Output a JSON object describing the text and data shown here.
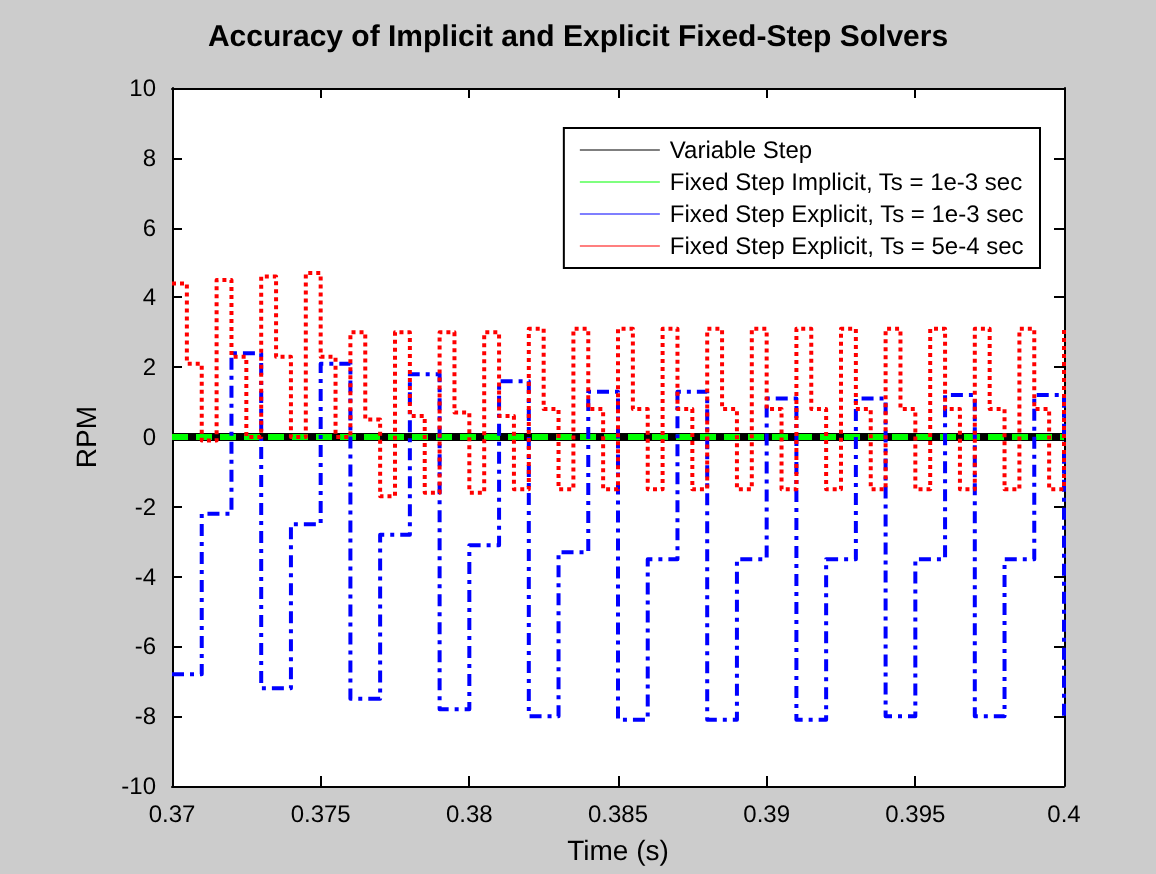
{
  "chart_data": {
    "type": "step",
    "title": "Accuracy of Implicit and Explicit Fixed-Step Solvers",
    "xlabel": "Time (s)",
    "ylabel": "RPM",
    "xlim": [
      0.37,
      0.4
    ],
    "xticks": [
      0.37,
      0.375,
      0.38,
      0.385,
      0.39,
      0.395,
      0.4
    ],
    "ylim": [
      -10,
      10
    ],
    "yticks": [
      -10,
      -8,
      -6,
      -4,
      -2,
      0,
      2,
      4,
      6,
      8,
      10
    ],
    "grid": false,
    "legend": "top right",
    "marker": "none",
    "series": [
      {
        "name": "Variable Step",
        "color": "#000000",
        "line_style": "solid",
        "x": [
          0.37,
          0.4
        ],
        "values": [
          0,
          0
        ]
      },
      {
        "name": "Fixed Step Implicit, Ts = 1e-3 sec",
        "color": "#00ff00",
        "line_style": "dashed",
        "x": [
          0.37,
          0.4
        ],
        "values": [
          0,
          0
        ]
      },
      {
        "name": "Fixed Step Explicit, Ts = 1e-3 sec",
        "color": "#0000ff",
        "line_style": "dashdot",
        "x": [
          0.37,
          0.371,
          0.372,
          0.373,
          0.374,
          0.375,
          0.376,
          0.377,
          0.378,
          0.379,
          0.38,
          0.381,
          0.382,
          0.383,
          0.384,
          0.385,
          0.386,
          0.387,
          0.388,
          0.389,
          0.39,
          0.391,
          0.392,
          0.393,
          0.394,
          0.395,
          0.396,
          0.397,
          0.398,
          0.399,
          0.4
        ],
        "values": [
          -6.8,
          -2.2,
          2.4,
          -7.2,
          -2.5,
          2.1,
          -7.5,
          -2.8,
          1.8,
          -7.8,
          -3.1,
          1.6,
          -8.0,
          -3.3,
          1.3,
          -8.1,
          -3.5,
          1.3,
          -8.1,
          -3.5,
          1.1,
          -8.1,
          -3.5,
          1.1,
          -8.0,
          -3.5,
          1.2,
          -8.0,
          -3.5,
          1.2,
          -8.0
        ]
      },
      {
        "name": "Fixed Step Explicit, Ts = 5e-4 sec",
        "color": "#ff0000",
        "line_style": "dotted",
        "x": [
          0.37,
          0.3705,
          0.371,
          0.3715,
          0.372,
          0.3725,
          0.373,
          0.3735,
          0.374,
          0.3745,
          0.375,
          0.3755,
          0.376,
          0.3765,
          0.377,
          0.3775,
          0.378,
          0.3785,
          0.379,
          0.3795,
          0.38,
          0.3805,
          0.381,
          0.3815,
          0.382,
          0.3825,
          0.383,
          0.3835,
          0.384,
          0.3845,
          0.385,
          0.3855,
          0.386,
          0.3865,
          0.387,
          0.3875,
          0.388,
          0.3885,
          0.389,
          0.3895,
          0.39,
          0.3905,
          0.391,
          0.3915,
          0.392,
          0.3925,
          0.393,
          0.3935,
          0.394,
          0.3945,
          0.395,
          0.3955,
          0.396,
          0.3965,
          0.397,
          0.3975,
          0.398,
          0.3985,
          0.399,
          0.3995,
          0.4
        ],
        "values": [
          4.4,
          2.1,
          -0.1,
          4.5,
          2.3,
          0.0,
          4.6,
          2.3,
          0.0,
          4.7,
          2.3,
          0.0,
          3.0,
          0.5,
          -1.7,
          3.0,
          0.6,
          -1.6,
          3.0,
          0.7,
          -1.6,
          3.0,
          0.6,
          -1.5,
          3.1,
          0.8,
          -1.5,
          3.1,
          0.8,
          -1.5,
          3.1,
          0.8,
          -1.5,
          3.1,
          0.8,
          -1.5,
          3.1,
          0.8,
          -1.5,
          3.1,
          0.8,
          -1.5,
          3.1,
          0.8,
          -1.5,
          3.1,
          0.8,
          -1.5,
          3.1,
          0.8,
          -1.5,
          3.1,
          0.8,
          -1.5,
          3.1,
          0.8,
          -1.5,
          3.1,
          0.8,
          -1.5,
          3.1
        ]
      }
    ]
  }
}
